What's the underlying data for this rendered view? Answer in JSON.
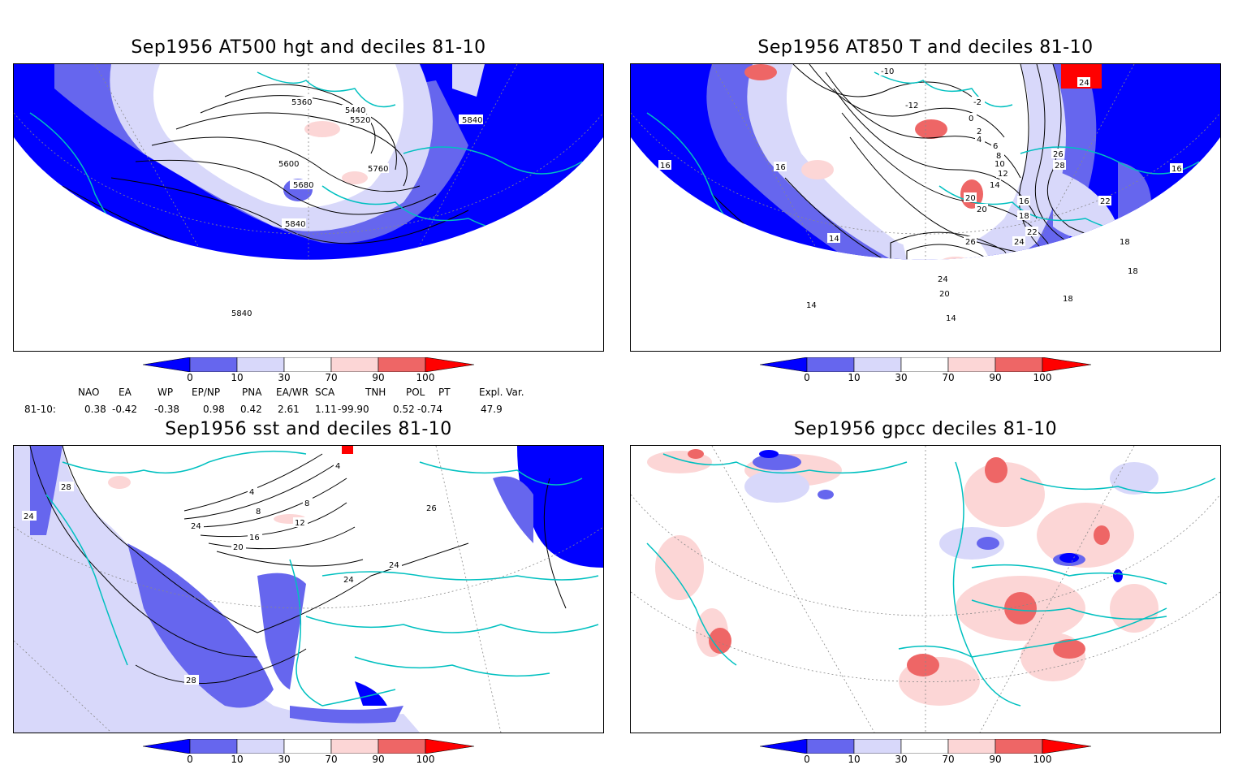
{
  "panels": [
    {
      "title": "Sep1956 AT500 hgt and deciles 81-10",
      "contour_labels": [
        "5360",
        "5440",
        "5520",
        "5600",
        "5680",
        "5760",
        "5840",
        "5840",
        "5840"
      ]
    },
    {
      "title": "Sep1956 AT850 T and deciles 81-10",
      "contour_labels": [
        "-10",
        "-12",
        "-2",
        "0",
        "2",
        "4",
        "6",
        "8",
        "10",
        "12",
        "14",
        "16",
        "16",
        "16",
        "16",
        "18",
        "18",
        "18",
        "18",
        "20",
        "20",
        "22",
        "22",
        "24",
        "24",
        "24",
        "26",
        "26",
        "28",
        "14",
        "14",
        "14",
        "20"
      ]
    },
    {
      "title": "Sep1956 sst and deciles 81-10",
      "contour_labels": [
        "4",
        "4",
        "8",
        "8",
        "12",
        "16",
        "20",
        "24",
        "24",
        "24",
        "24",
        "26",
        "28",
        "28"
      ]
    },
    {
      "title": "Sep1956 gpcc deciles 81-10",
      "contour_labels": []
    }
  ],
  "colorbar": {
    "ticks": [
      "0",
      "10",
      "30",
      "70",
      "90",
      "100"
    ],
    "colors": [
      "#0000ff",
      "#6666ee",
      "#d8d8fa",
      "#ffffff",
      "#fcd6d6",
      "#ee6666",
      "#ff0000"
    ]
  },
  "indices": {
    "headers": [
      "NAO",
      "EA",
      "WP",
      "EP/NP",
      "PNA",
      "EA/WR",
      "SCA",
      "TNH",
      "POL",
      "PT",
      "Expl. Var."
    ],
    "row_label": "81-10:",
    "values": [
      "0.38",
      "-0.42",
      "-0.38",
      "0.98",
      "0.42",
      "2.61",
      "1.11",
      "-99.90",
      "0.52",
      "-0.74",
      "47.9"
    ]
  },
  "colors": {
    "coast": "#00c0c0",
    "contour": "#000000",
    "grid": "#888888"
  }
}
